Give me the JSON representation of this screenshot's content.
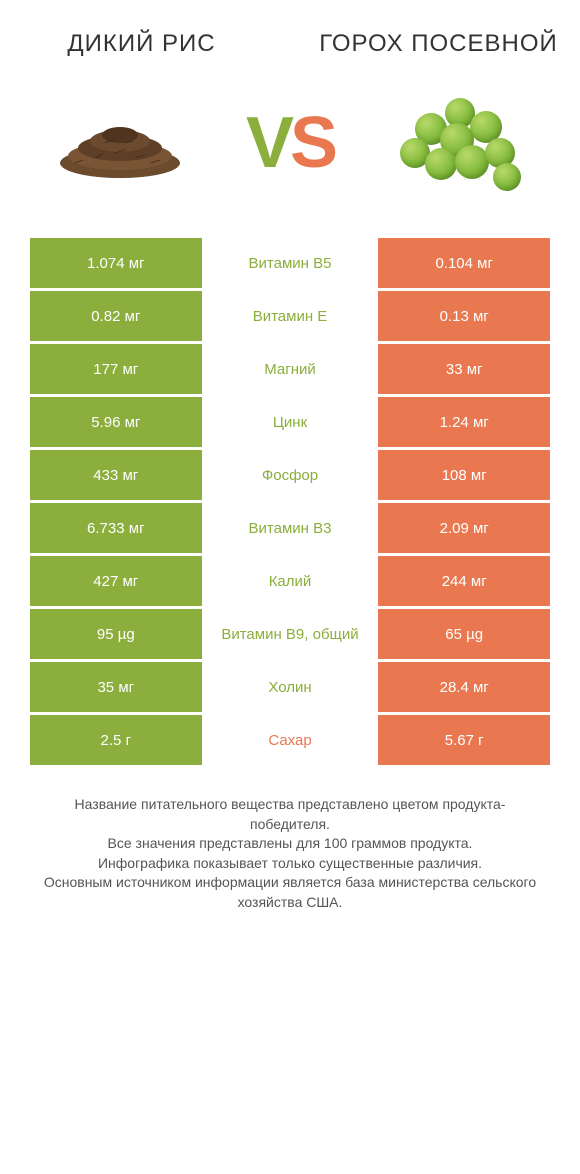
{
  "header": {
    "left_title": "ДИКИЙ РИС",
    "right_title": "ГОРОХ ПОСЕВНОЙ"
  },
  "vs": {
    "v": "V",
    "s": "S"
  },
  "colors": {
    "green": "#8bae3c",
    "orange": "#e97850",
    "mid_green_text": "#8bae3c",
    "mid_orange_text": "#e97850"
  },
  "rows": [
    {
      "left": "1.074 мг",
      "mid": "Витамин B5",
      "right": "0.104 мг",
      "winner": "left"
    },
    {
      "left": "0.82 мг",
      "mid": "Витамин E",
      "right": "0.13 мг",
      "winner": "left"
    },
    {
      "left": "177 мг",
      "mid": "Магний",
      "right": "33 мг",
      "winner": "left"
    },
    {
      "left": "5.96 мг",
      "mid": "Цинк",
      "right": "1.24 мг",
      "winner": "left"
    },
    {
      "left": "433 мг",
      "mid": "Фосфор",
      "right": "108 мг",
      "winner": "left"
    },
    {
      "left": "6.733 мг",
      "mid": "Витамин B3",
      "right": "2.09 мг",
      "winner": "left"
    },
    {
      "left": "427 мг",
      "mid": "Калий",
      "right": "244 мг",
      "winner": "left"
    },
    {
      "left": "95 µg",
      "mid": "Витамин B9, общий",
      "right": "65 µg",
      "winner": "left"
    },
    {
      "left": "35 мг",
      "mid": "Холин",
      "right": "28.4 мг",
      "winner": "left"
    },
    {
      "left": "2.5 г",
      "mid": "Сахар",
      "right": "5.67 г",
      "winner": "right"
    }
  ],
  "footer": {
    "line1": "Название питательного вещества представлено цветом продукта-победителя.",
    "line2": "Все значения представлены для 100 граммов продукта.",
    "line3": "Инфографика показывает только существенные различия.",
    "line4": "Основным источником информации является база министерства сельского хозяйства США."
  }
}
